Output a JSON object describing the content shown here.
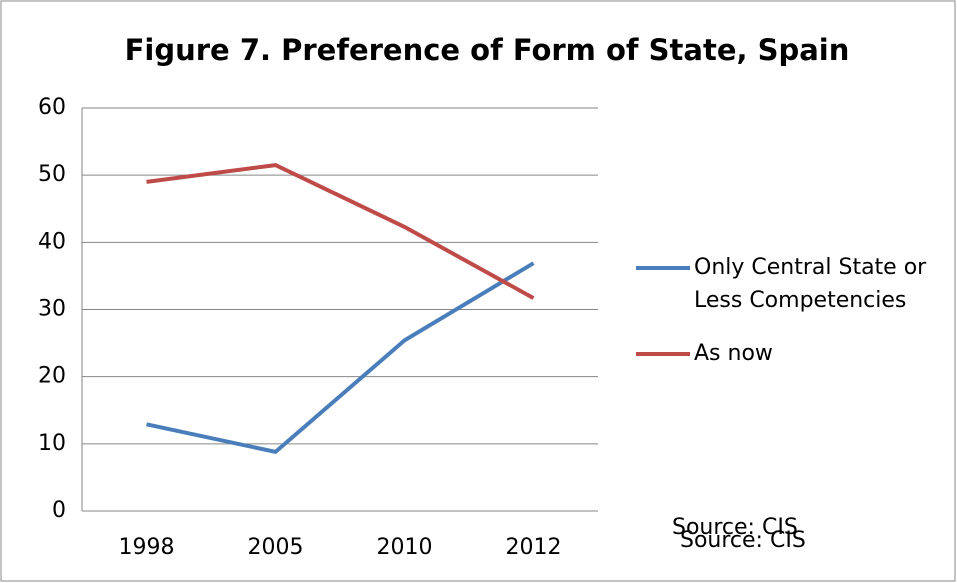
{
  "chart_data": {
    "type": "line",
    "title": "Figure 7. Preference of Form of State, Spain",
    "categories": [
      "1998",
      "2005",
      "2010",
      "2012"
    ],
    "series": [
      {
        "name": "Only Central State or Less Competencies",
        "color": "#4a7ebb",
        "values": [
          12.9,
          8.8,
          25.4,
          36.9
        ]
      },
      {
        "name": "As now",
        "color": "#be4b48",
        "values": [
          49.0,
          51.5,
          42.3,
          31.7
        ]
      }
    ],
    "ylim": [
      0,
      60
    ],
    "yticks": [
      0,
      10,
      20,
      30,
      40,
      50,
      60
    ],
    "grid": true,
    "legend": "right",
    "annotations": [
      "Source: CIS",
      "Source: CIS"
    ]
  }
}
